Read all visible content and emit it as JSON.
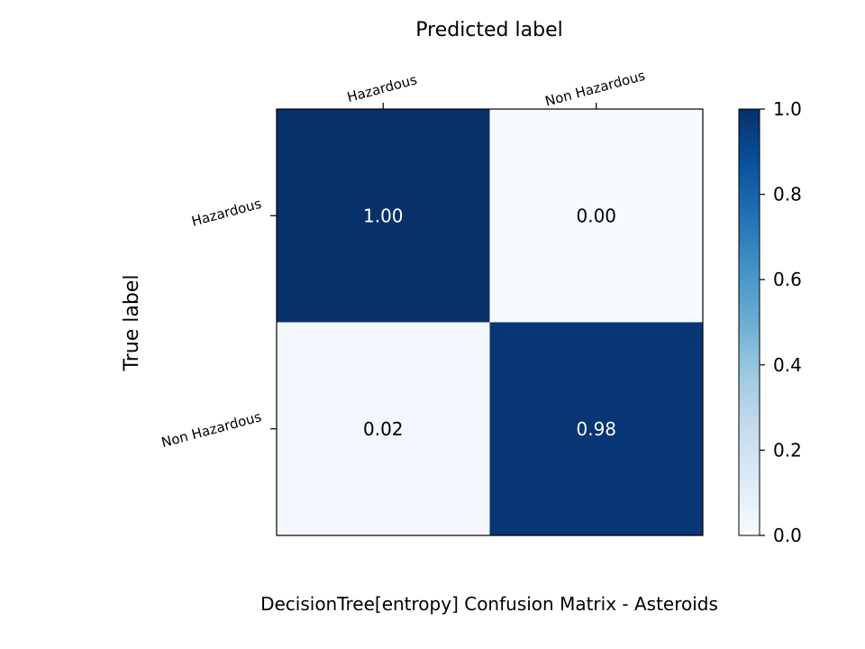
{
  "chart_data": {
    "type": "heatmap",
    "title": "DecisionTree[entropy]  Confusion Matrix - Asteroids",
    "xlabel": "Predicted label",
    "ylabel": "True label",
    "x_categories": [
      "Hazardous",
      "Non Hazardous"
    ],
    "y_categories": [
      "Hazardous",
      "Non Hazardous"
    ],
    "values": [
      [
        1.0,
        0.0
      ],
      [
        0.02,
        0.98
      ]
    ],
    "cell_labels": [
      [
        "1.00",
        "0.00"
      ],
      [
        "0.02",
        "0.98"
      ]
    ],
    "colormap": "Blues",
    "colorbar": {
      "range": [
        0.0,
        1.0
      ],
      "ticks": [
        "0.0",
        "0.2",
        "0.4",
        "0.6",
        "0.8",
        "1.0"
      ]
    }
  }
}
